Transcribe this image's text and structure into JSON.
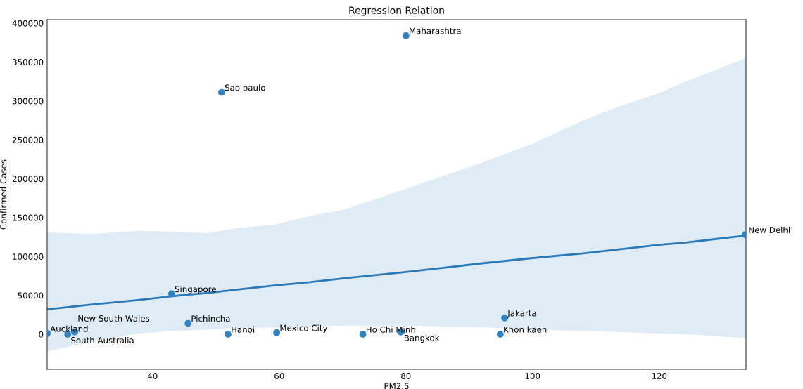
{
  "chart_data": {
    "type": "scatter",
    "title": "Regression Relation",
    "xlabel": "PM2.5",
    "ylabel": "Confirmed Cases",
    "xlim": [
      23.35,
      133.7
    ],
    "ylim": [
      -45100,
      404500
    ],
    "xticks": [
      40,
      60,
      80,
      100,
      120
    ],
    "yticks": [
      0,
      50000,
      100000,
      150000,
      200000,
      250000,
      300000,
      350000,
      400000
    ],
    "grid": false,
    "series": [
      {
        "marker": "circle",
        "color": "#3383be",
        "x": [
          23.35,
          26.6,
          27.7,
          43.0,
          45.6,
          50.9,
          51.9,
          59.6,
          80.0,
          73.2,
          79.2,
          95.6,
          94.9,
          133.6
        ],
        "values": [
          1000,
          0,
          3000,
          52000,
          14000,
          311000,
          0,
          2000,
          384000,
          0,
          3000,
          21000,
          0,
          128000
        ]
      },
      {
        "type": "line",
        "color": "#2a7ab9",
        "line_style": "solid",
        "x": [
          23.35,
          30.2,
          37.7,
          43.1,
          48.5,
          53.9,
          59.4,
          64.8,
          70.2,
          80.0,
          86.4,
          91.8,
          100,
          108,
          113.4,
          120,
          124.2,
          133.7
        ],
        "values": [
          32000,
          38000,
          44000,
          49000,
          53000,
          58000,
          63000,
          67000,
          72000,
          80000,
          86000,
          91000,
          98000,
          104000,
          109000,
          115000,
          118000,
          127000
        ],
        "lower": [
          -22000,
          -10000,
          1000,
          4000,
          6000,
          7500,
          9000,
          10000,
          11000,
          11000,
          10000,
          9000,
          6000,
          4000,
          3000,
          1000,
          0,
          -5000
        ],
        "upper": [
          131000,
          129000,
          133000,
          132000,
          130000,
          137000,
          141000,
          152000,
          160000,
          187000,
          205000,
          220000,
          245000,
          275000,
          292000,
          310000,
          325000,
          355000
        ]
      }
    ],
    "annotations": [
      {
        "text": "Auckland",
        "x": 23.35,
        "y": 1000
      },
      {
        "text": "South Australia",
        "x": 26.6,
        "y": 0
      },
      {
        "text": "New South Wales",
        "x": 27.7,
        "y": 3000
      },
      {
        "text": "Singapore",
        "x": 43.0,
        "y": 52000
      },
      {
        "text": "Pichincha",
        "x": 45.6,
        "y": 14000
      },
      {
        "text": "Sao paulo",
        "x": 50.9,
        "y": 311000
      },
      {
        "text": "Hanoi",
        "x": 51.9,
        "y": 0
      },
      {
        "text": "Mexico City",
        "x": 59.6,
        "y": 2000
      },
      {
        "text": "Maharashtra",
        "x": 80.0,
        "y": 384000
      },
      {
        "text": "Ho Chi Minh",
        "x": 73.2,
        "y": 0
      },
      {
        "text": "Bangkok",
        "x": 79.2,
        "y": 3000
      },
      {
        "text": "Jakarta",
        "x": 95.6,
        "y": 21000
      },
      {
        "text": "Khon kaen",
        "x": 94.9,
        "y": 0
      },
      {
        "text": "New Delhi",
        "x": 133.6,
        "y": 128000
      }
    ]
  }
}
